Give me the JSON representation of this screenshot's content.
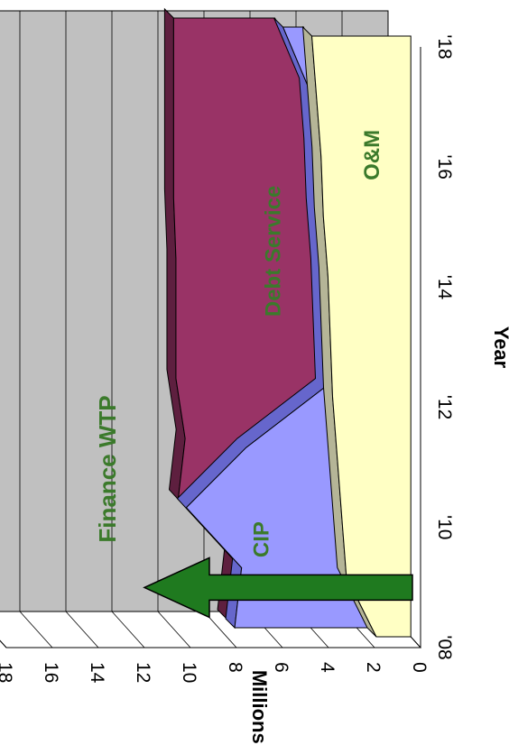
{
  "chart_data": {
    "type": "area",
    "stacked": true,
    "three_d": true,
    "orientation": "rotated-90-clockwise",
    "title": "",
    "xlabel": "Year",
    "ylabel": "Millions, $",
    "x": [
      2008,
      2009,
      2010,
      2011,
      2012,
      2013,
      2014,
      2015,
      2016,
      2017,
      2018
    ],
    "x_tick_labels": [
      "'08",
      "'10",
      "'12",
      "'14",
      "'16",
      "'18"
    ],
    "x_tick_values": [
      2008,
      2010,
      2012,
      2014,
      2016,
      2018
    ],
    "ylim": [
      0,
      18
    ],
    "y_ticks": [
      0,
      2,
      4,
      6,
      8,
      10,
      12,
      14,
      16,
      18
    ],
    "grid": true,
    "series": [
      {
        "name": "O&M",
        "color": "#ffffc4",
        "side_color": "#b5b597",
        "values": [
          1.5,
          2.8,
          3.0,
          3.2,
          3.4,
          3.5,
          3.6,
          3.8,
          3.9,
          4.1,
          4.3
        ]
      },
      {
        "name": "CIP",
        "color": "#9999ff",
        "side_color": "#6666cc",
        "values": [
          5.8,
          4.2,
          6.4,
          3.6,
          0,
          0,
          0,
          0,
          0,
          0,
          0.9
        ]
      },
      {
        "name": "Debt Service",
        "color": "#993366",
        "side_color": "#5e1f3f",
        "values": [
          0,
          0,
          0,
          2.3,
          6.1,
          6.0,
          5.9,
          5.8,
          5.7,
          5.5,
          4.4
        ]
      }
    ],
    "annotation": {
      "text": "Finance WTP",
      "arrow_color": "#1f7a1f",
      "arrow_at_x": 2009
    }
  }
}
